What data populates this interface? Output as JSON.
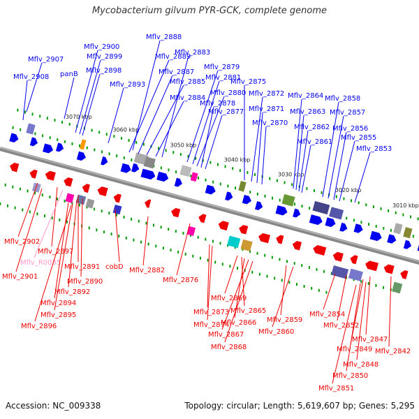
{
  "title": "Mycobacterium gilvum PYR-GCK, complete genome",
  "footer": {
    "accession": "Accession: NC_009338",
    "summary": "Topology: circular; Length: 5,619,607 bp; Genes: 5,295"
  },
  "colors": {
    "forward": "#0000ee",
    "reverse": "#ee0000",
    "rna": "#ff99cc",
    "backbone": "#888888",
    "tick": "#009900"
  },
  "positions": [
    {
      "label": "3070 kbp"
    },
    {
      "label": "3060 kbp"
    },
    {
      "label": "3050 kbp"
    },
    {
      "label": "3040 kbp"
    },
    {
      "label": "3030 kbp"
    },
    {
      "label": "3020 kbp"
    },
    {
      "label": "3010 kbp"
    }
  ],
  "forward_genes": [
    {
      "label": "Mflv_2907"
    },
    {
      "label": "Mflv_2908"
    },
    {
      "label": "panB"
    },
    {
      "label": "Mflv_2900"
    },
    {
      "label": "Mflv_2899"
    },
    {
      "label": "Mflv_2898"
    },
    {
      "label": "Mflv_2893"
    },
    {
      "label": "Mflv_2888"
    },
    {
      "label": "Mflv_2889"
    },
    {
      "label": "Mflv_2887"
    },
    {
      "label": "Mflv_2885"
    },
    {
      "label": "Mflv_2884"
    },
    {
      "label": "Mflv_2883"
    },
    {
      "label": "Mflv_2879"
    },
    {
      "label": "Mflv_2881"
    },
    {
      "label": "Mflv_2880"
    },
    {
      "label": "Mflv_2878"
    },
    {
      "label": "Mflv_2877"
    },
    {
      "label": "Mflv_2875"
    },
    {
      "label": "Mflv_2872"
    },
    {
      "label": "Mflv_2871"
    },
    {
      "label": "Mflv_2870"
    },
    {
      "label": "Mflv_2864"
    },
    {
      "label": "Mflv_2863"
    },
    {
      "label": "Mflv_2862"
    },
    {
      "label": "Mflv_2861"
    },
    {
      "label": "Mflv_2858"
    },
    {
      "label": "Mflv_2857"
    },
    {
      "label": "Mflv_2856"
    },
    {
      "label": "Mflv_2855"
    },
    {
      "label": "Mflv_2853"
    }
  ],
  "reverse_genes": [
    {
      "label": "Mflv_2902"
    },
    {
      "label": "Mflv_2897"
    },
    {
      "label": "Mflv_R0035",
      "rna": true
    },
    {
      "label": "Mflv_2901"
    },
    {
      "label": "Mflv_2891"
    },
    {
      "label": "Mflv_2890"
    },
    {
      "label": "Mflv_2892"
    },
    {
      "label": "Mflv_2894"
    },
    {
      "label": "Mflv_2895"
    },
    {
      "label": "Mflv_2896"
    },
    {
      "label": "cobD"
    },
    {
      "label": "Mflv_2882"
    },
    {
      "label": "Mflv_2876"
    },
    {
      "label": "Mflv_2873"
    },
    {
      "label": "Mflv_2874"
    },
    {
      "label": "Mflv_2869"
    },
    {
      "label": "Mflv_2865"
    },
    {
      "label": "Mflv_2866"
    },
    {
      "label": "Mflv_2867"
    },
    {
      "label": "Mflv_2868"
    },
    {
      "label": "Mflv_2859"
    },
    {
      "label": "Mflv_2860"
    },
    {
      "label": "Mflv_2854"
    },
    {
      "label": "Mflv_2852"
    },
    {
      "label": "Mflv_2847"
    },
    {
      "label": "Mflv_2849"
    },
    {
      "label": "Mflv_2848"
    },
    {
      "label": "Mflv_2850"
    },
    {
      "label": "Mflv_2851"
    },
    {
      "label": "Mflv_2842"
    }
  ]
}
